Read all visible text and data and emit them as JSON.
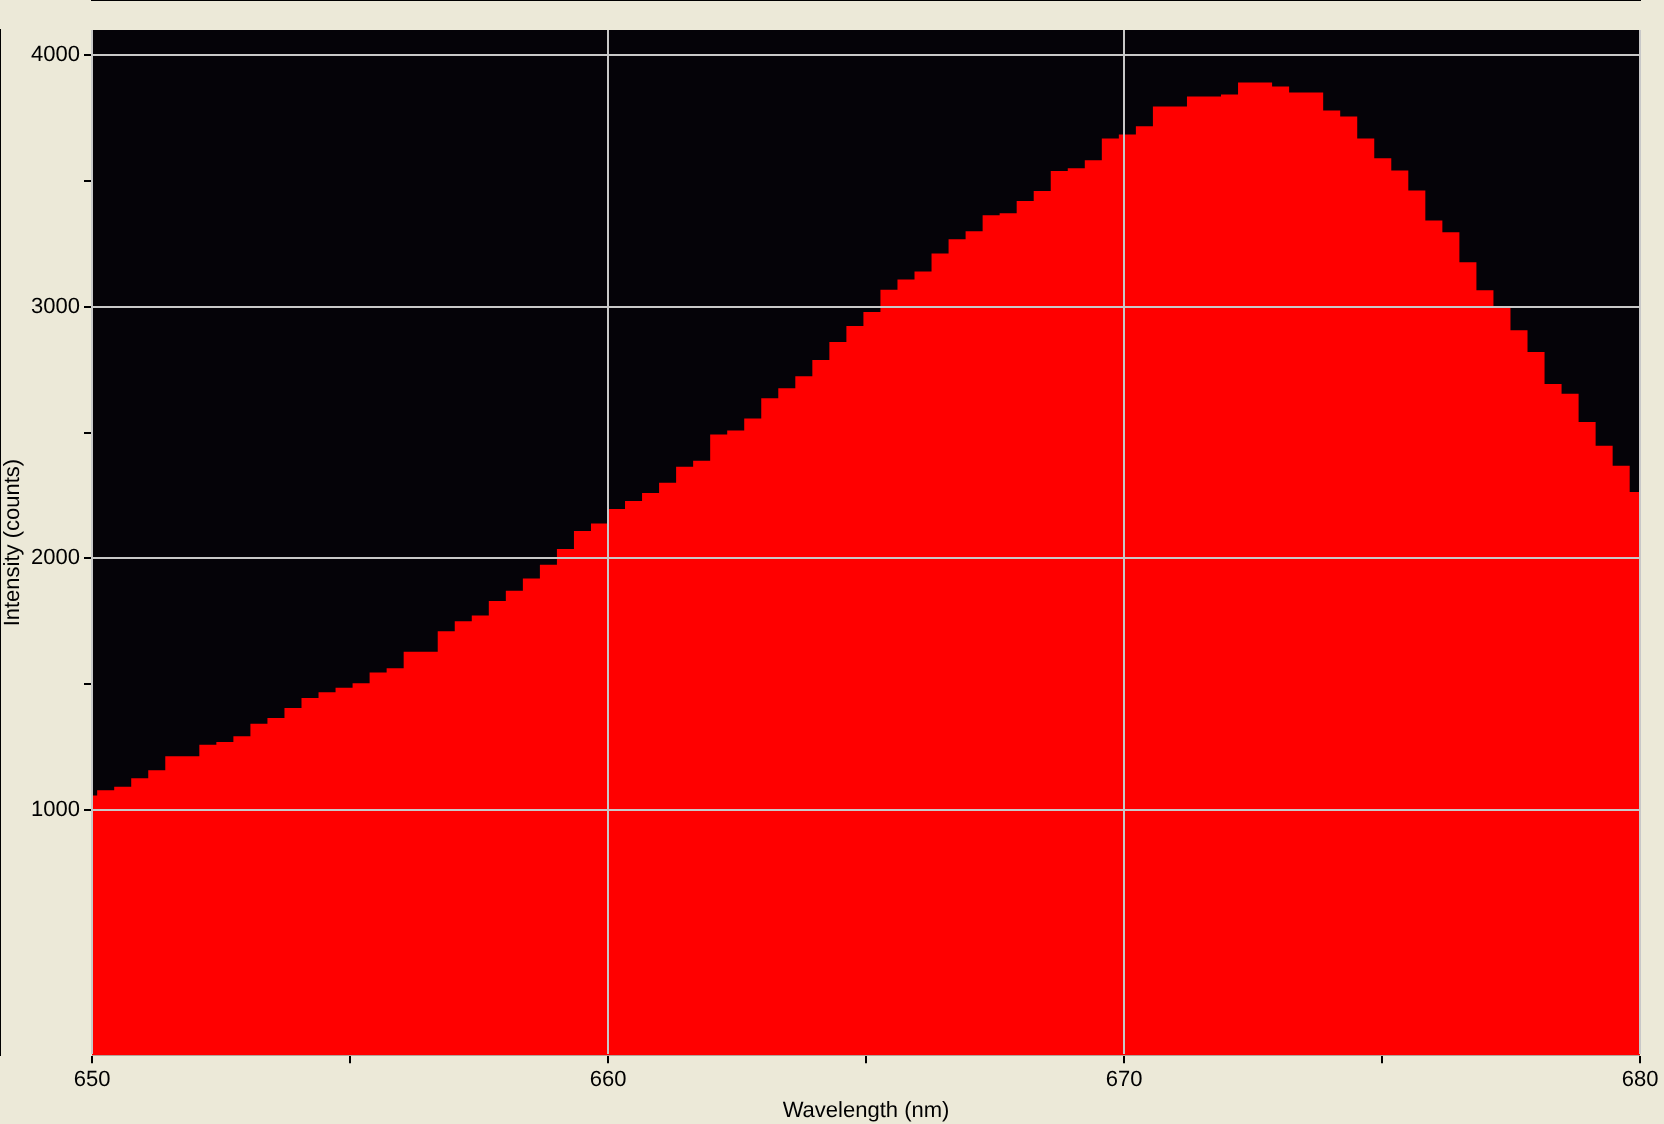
{
  "chart_data": {
    "type": "histogram",
    "xlabel": "Wavelength (nm)",
    "ylabel": "Intensity (counts)",
    "bins": [
      650,
      650.1,
      650.43,
      650.76,
      651.09,
      651.42,
      651.75,
      652.08,
      652.41,
      652.74,
      653.07,
      653.4,
      653.73,
      654.06,
      654.39,
      654.72,
      655.05,
      655.38,
      655.71,
      656.04,
      656.37,
      656.7,
      657.03,
      657.36,
      657.69,
      658.02,
      658.35,
      658.68,
      659.01,
      659.34,
      659.67,
      660,
      660.33,
      660.66,
      660.99,
      661.32,
      661.65,
      661.98,
      662.31,
      662.64,
      662.97,
      663.3,
      663.63,
      663.96,
      664.29,
      664.62,
      664.95,
      665.28,
      665.61,
      665.94,
      666.27,
      666.6,
      666.93,
      667.26,
      667.59,
      667.92,
      668.25,
      668.58,
      668.91,
      669.24,
      669.57,
      669.9,
      670.23,
      670.56,
      670.89,
      671.22,
      671.55,
      671.88,
      672.21,
      672.54,
      672.87,
      673.2,
      673.53,
      673.86,
      674.19,
      674.52,
      674.85,
      675.18,
      675.51,
      675.84,
      676.17,
      676.5,
      676.83,
      677.16,
      677.49,
      677.82,
      678.15,
      678.48,
      678.81,
      679.14,
      679.47,
      679.8,
      680
    ],
    "values": [
      1057,
      1078,
      1092,
      1126,
      1158,
      1213,
      1213,
      1259,
      1270,
      1293,
      1342,
      1365,
      1405,
      1445,
      1468,
      1486,
      1503,
      1546,
      1563,
      1629,
      1629,
      1710,
      1750,
      1773,
      1830,
      1871,
      1920,
      1974,
      2037,
      2109,
      2138,
      2196,
      2228,
      2260,
      2300,
      2364,
      2388,
      2492,
      2508,
      2556,
      2636,
      2676,
      2724,
      2788,
      2860,
      2923,
      2979,
      3068,
      3108,
      3140,
      3212,
      3268,
      3300,
      3364,
      3372,
      3420,
      3460,
      3540,
      3550,
      3582,
      3669,
      3685,
      3717,
      3796,
      3796,
      3836,
      3836,
      3844,
      3891,
      3891,
      3875,
      3852,
      3852,
      3780,
      3756,
      3669,
      3590,
      3542,
      3462,
      3343,
      3296,
      3177,
      3066,
      3002,
      2907,
      2820,
      2693,
      2654,
      2542,
      2447,
      2368,
      2264
    ],
    "color": "#ff0000",
    "xlim": [
      650,
      680
    ],
    "xticks": [
      650,
      {
        "value": 655,
        "label": null
      },
      660,
      {
        "value": 665,
        "label": null
      },
      670,
      {
        "value": 675,
        "label": null
      },
      680
    ],
    "ylim": [
      25,
      4100
    ],
    "yticks": [
      1000,
      {
        "value": 1500,
        "label": null
      },
      2000,
      {
        "value": 2500,
        "label": null
      },
      3000,
      {
        "value": 3500,
        "label": null
      },
      4000
    ],
    "grid": true,
    "legend": false
  }
}
